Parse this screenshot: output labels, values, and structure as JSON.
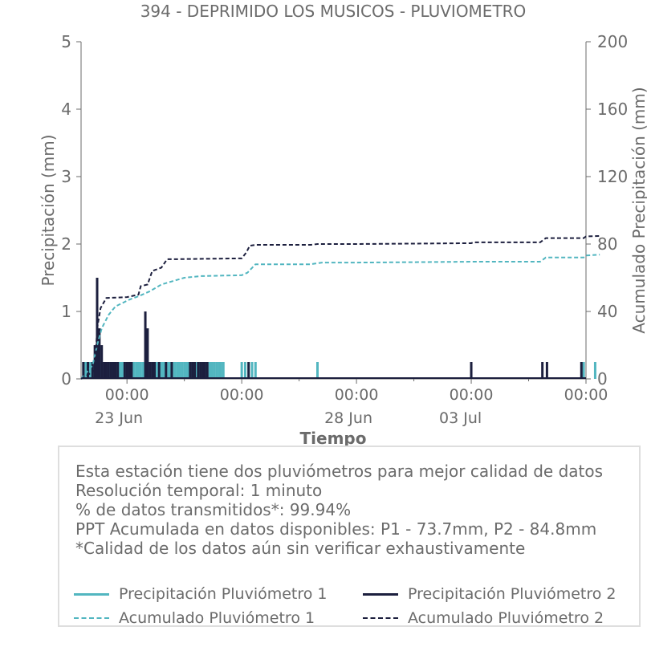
{
  "chart_data": {
    "type": "line",
    "title": "394 - DEPRIMIDO LOS MUSICOS - PLUVIOMETRO",
    "xlabel": "Tiempo",
    "ylabel_left": "Precipitación (mm)",
    "ylabel_right": "Acumulado Precipitación (mm)",
    "y_left_range": [
      0,
      5
    ],
    "y_left_ticks": [
      "0",
      "1",
      "2",
      "3",
      "4",
      "5"
    ],
    "y_right_range": [
      0,
      200
    ],
    "y_right_ticks": [
      "0",
      "40",
      "80",
      "120",
      "160",
      "200"
    ],
    "x_range_days": [
      22.6,
      27.0
    ],
    "x_ticks": [
      {
        "day": 23.0,
        "time": "00:00",
        "date": "23 Jun"
      },
      {
        "day": 24.0,
        "time": "00:00",
        "date": ""
      },
      {
        "day": 25.0,
        "time": "00:00",
        "date": "28 Jun"
      },
      {
        "day": 26.0,
        "time": "00:00",
        "date": "03 Jul"
      },
      {
        "day": 27.0,
        "time": "00:00",
        "date": ""
      }
    ],
    "grid": false,
    "colors": {
      "p1": "#52b6c0",
      "p2": "#1c1f3e"
    },
    "series": [
      {
        "name": "Precipitación Pluviómetro 1",
        "axis": "left",
        "style": "bars",
        "x": [
          22.62,
          22.64,
          22.66,
          22.68,
          22.7,
          22.72,
          22.74,
          22.76,
          22.78,
          22.8,
          22.82,
          22.84,
          22.86,
          22.88,
          22.9,
          22.92,
          22.94,
          22.96,
          22.98,
          23.0,
          23.02,
          23.04,
          23.06,
          23.08,
          23.1,
          23.12,
          23.14,
          23.16,
          23.18,
          23.2,
          23.22,
          23.24,
          23.26,
          23.28,
          23.3,
          23.32,
          23.34,
          23.36,
          23.38,
          23.4,
          23.42,
          23.44,
          23.46,
          23.48,
          23.5,
          23.52,
          23.54,
          23.56,
          23.58,
          23.6,
          23.62,
          23.64,
          23.66,
          23.68,
          23.72,
          23.74,
          23.76,
          23.78,
          23.8,
          23.82,
          23.84,
          24.0,
          24.03,
          24.06,
          24.09,
          24.12,
          24.66,
          26.98,
          27.08
        ],
        "values": [
          0.25,
          0.25,
          0.25,
          0.25,
          0.25,
          0.25,
          0.25,
          0.25,
          0.25,
          0.25,
          0.25,
          0.25,
          0.25,
          0.25,
          0.25,
          0.25,
          0.25,
          0.25,
          0.25,
          0.25,
          0.25,
          0.25,
          0.25,
          0.25,
          0.25,
          0.25,
          0.25,
          0.25,
          0.25,
          0.25,
          0.25,
          0.25,
          0.25,
          0.25,
          0.25,
          0.25,
          0.25,
          0.25,
          0.25,
          0.25,
          0.25,
          0.25,
          0.25,
          0.25,
          0.25,
          0.25,
          0.25,
          0.25,
          0.25,
          0.25,
          0.25,
          0.25,
          0.25,
          0.25,
          0.25,
          0.25,
          0.25,
          0.25,
          0.25,
          0.25,
          0.25,
          0.25,
          0.25,
          0.25,
          0.25,
          0.25,
          0.25,
          0.25,
          0.25
        ]
      },
      {
        "name": "Precipitación Pluviómetro 2",
        "axis": "left",
        "style": "bars",
        "x": [
          22.62,
          22.66,
          22.7,
          22.72,
          22.74,
          22.76,
          22.78,
          22.8,
          22.82,
          22.84,
          22.86,
          22.88,
          22.9,
          22.92,
          22.98,
          23.0,
          23.02,
          23.04,
          23.16,
          23.18,
          23.2,
          23.22,
          23.24,
          23.28,
          23.34,
          23.39,
          23.55,
          23.57,
          23.59,
          23.62,
          23.64,
          23.66,
          23.68,
          23.7,
          24.06,
          26.0,
          26.62,
          26.66,
          26.96
        ],
        "values": [
          0.25,
          0.25,
          0.25,
          0.5,
          1.5,
          0.75,
          0.5,
          0.25,
          0.25,
          0.25,
          0.25,
          0.25,
          0.25,
          0.25,
          0.25,
          0.25,
          0.25,
          0.25,
          1.0,
          0.75,
          0.25,
          0.25,
          0.25,
          0.25,
          0.25,
          0.25,
          0.25,
          0.25,
          0.25,
          0.25,
          0.25,
          0.25,
          0.25,
          0.25,
          0.25,
          0.25,
          0.25,
          0.25,
          0.25
        ]
      },
      {
        "name": "Acumulado Pluviómetro 1",
        "axis": "right",
        "style": "dashed",
        "x": [
          22.6,
          22.7,
          22.74,
          22.78,
          22.84,
          22.9,
          22.96,
          23.02,
          23.1,
          23.2,
          23.3,
          23.4,
          23.5,
          23.65,
          24.0,
          24.05,
          24.12,
          24.3,
          24.6,
          24.7,
          25.0,
          26.0,
          26.6,
          26.65,
          26.8,
          26.98,
          27.0,
          27.12
        ],
        "values": [
          0,
          8,
          20,
          30,
          38,
          43,
          45,
          47,
          49,
          52,
          56,
          58,
          60,
          61,
          61.5,
          63,
          68,
          68,
          68,
          69,
          69,
          69.5,
          69.5,
          72,
          72,
          72,
          73.2,
          73.7
        ]
      },
      {
        "name": "Acumulado Pluviómetro 2",
        "axis": "right",
        "style": "dashed",
        "x": [
          22.6,
          22.72,
          22.74,
          22.77,
          22.82,
          23.0,
          23.1,
          23.12,
          23.18,
          23.22,
          23.3,
          23.35,
          23.4,
          24.0,
          24.04,
          24.07,
          24.12,
          24.6,
          24.66,
          25.0,
          26.0,
          26.02,
          26.6,
          26.62,
          26.65,
          26.98,
          27.0,
          27.12
        ],
        "values": [
          0,
          5,
          30,
          42,
          48,
          48.5,
          50,
          55,
          56,
          64,
          66,
          71,
          71,
          71.5,
          75,
          79,
          79.5,
          79.5,
          80,
          80,
          80.5,
          81,
          81,
          82,
          83.5,
          83.5,
          84.5,
          84.8
        ]
      }
    ]
  },
  "info": {
    "lines": [
      "Esta estación tiene dos pluviómetros para mejor calidad de datos",
      "Resolución temporal: 1 minuto",
      "% de datos transmitidos*: 99.94%",
      "PPT Acumulada en datos disponibles: P1 - 73.7mm, P2 - 84.8mm",
      "*Calidad de los datos aún sin verificar exhaustivamente"
    ]
  },
  "legend": {
    "items": [
      "Precipitación Pluviómetro 1",
      "Precipitación Pluviómetro 2",
      "Acumulado Pluviómetro 1",
      "Acumulado Pluviómetro 2"
    ]
  }
}
